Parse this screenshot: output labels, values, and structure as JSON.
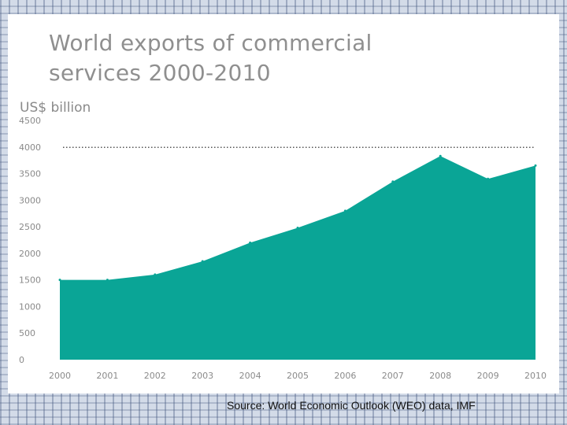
{
  "colors": {
    "area": "#0aa596",
    "reference_line": "#555555",
    "title": "#8f8f8f",
    "ticks": "#8a8a8a"
  },
  "slide": {
    "title_line1": "World exports of commercial",
    "title_line2": "services 2000-2010",
    "source": "Source:  World Economic Outlook (WEO) data, IMF"
  },
  "chart_data": {
    "type": "area",
    "title": "World exports of commercial services 2000-2010",
    "ylabel": "US$ billion",
    "xlabel": "",
    "x": [
      "2000",
      "2001",
      "2002",
      "2003",
      "2004",
      "2005",
      "2006",
      "2007",
      "2008",
      "2009",
      "2010"
    ],
    "values": [
      1500,
      1500,
      1600,
      1850,
      2200,
      2480,
      2800,
      3350,
      3830,
      3400,
      3650
    ],
    "ylim": [
      0,
      4500
    ],
    "yticks": [
      0,
      500,
      1000,
      1500,
      2000,
      2500,
      3000,
      3500,
      4000,
      4500
    ],
    "reference_line": {
      "value": 3830,
      "style": "dotted"
    },
    "grid": false,
    "legend": "none"
  }
}
